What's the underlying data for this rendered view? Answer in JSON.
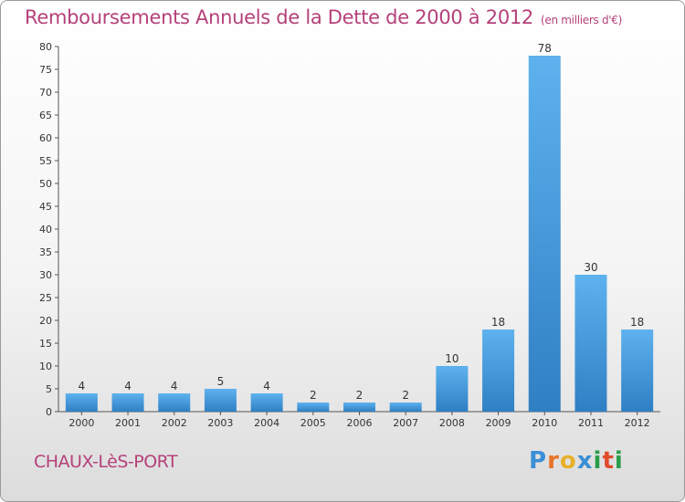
{
  "header": {
    "title": "Remboursements Annuels de la Dette de 2000 à 2012",
    "unit": "(en milliers d'€)"
  },
  "footer": {
    "commune": "CHAUX-LèS-PORT",
    "logo": {
      "letters": [
        "P",
        "r",
        "o",
        "x",
        "i",
        "t",
        "i"
      ],
      "colors": [
        "#3a8fd6",
        "#e8732a",
        "#e8b02a",
        "#3a8fd6",
        "#2a9d4a",
        "#e04a2a",
        "#2a9d4a"
      ]
    }
  },
  "chart_data": {
    "type": "bar",
    "categories": [
      "2000",
      "2001",
      "2002",
      "2003",
      "2004",
      "2005",
      "2006",
      "2007",
      "2008",
      "2009",
      "2010",
      "2011",
      "2012"
    ],
    "values": [
      4,
      4,
      4,
      5,
      4,
      2,
      2,
      2,
      10,
      18,
      78,
      30,
      18
    ],
    "ylim": [
      0,
      80
    ],
    "yticks": [
      0,
      5,
      10,
      15,
      20,
      25,
      30,
      35,
      40,
      45,
      50,
      55,
      60,
      65,
      70,
      75,
      80
    ],
    "grid": false,
    "bar_color": "#4a9fe0"
  }
}
